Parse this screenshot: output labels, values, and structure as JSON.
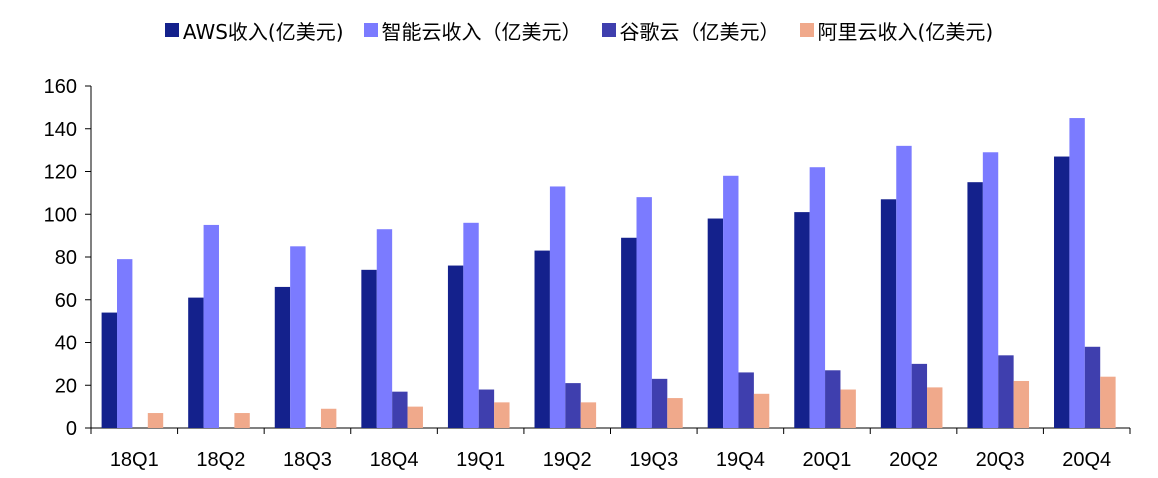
{
  "chart_data": {
    "type": "bar",
    "categories": [
      "18Q1",
      "18Q2",
      "18Q3",
      "18Q4",
      "19Q1",
      "19Q2",
      "19Q3",
      "19Q4",
      "20Q1",
      "20Q2",
      "20Q3",
      "20Q4"
    ],
    "series": [
      {
        "name": "AWS收入(亿美元)",
        "color": "#14218c",
        "values": [
          54,
          61,
          66,
          74,
          76,
          83,
          89,
          98,
          101,
          107,
          115,
          127
        ]
      },
      {
        "name": "智能云收入（亿美元）",
        "color": "#7b7bff",
        "values": [
          79,
          95,
          85,
          93,
          96,
          113,
          108,
          118,
          122,
          132,
          129,
          145
        ]
      },
      {
        "name": "谷歌云（亿美元）",
        "color": "#3f3fae",
        "values": [
          null,
          null,
          null,
          17,
          18,
          21,
          23,
          26,
          27,
          30,
          34,
          38
        ]
      },
      {
        "name": "阿里云收入(亿美元)",
        "color": "#f0a98b",
        "values": [
          7,
          7,
          9,
          10,
          12,
          12,
          14,
          16,
          18,
          19,
          22,
          24
        ]
      }
    ],
    "ylim": [
      0,
      160
    ],
    "yticks": [
      0,
      20,
      40,
      60,
      80,
      100,
      120,
      140,
      160
    ],
    "legend": "top",
    "grid": false,
    "title": "",
    "xlabel": "",
    "ylabel": ""
  }
}
